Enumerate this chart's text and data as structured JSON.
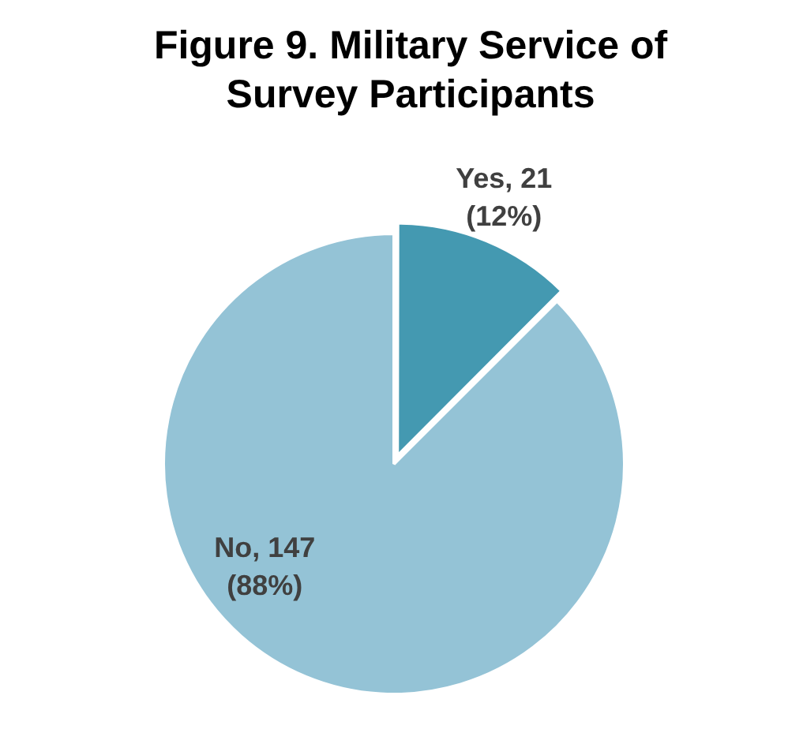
{
  "chart_data": {
    "type": "pie",
    "title": "Figure 9. Military Service of Survey Participants",
    "categories": [
      "Yes",
      "No"
    ],
    "values": [
      21,
      147
    ],
    "colors": [
      "#4499b1",
      "#94c3d6"
    ],
    "value_labels": [
      "21\n(12%)",
      "147\n(88%)"
    ],
    "legend": false
  }
}
